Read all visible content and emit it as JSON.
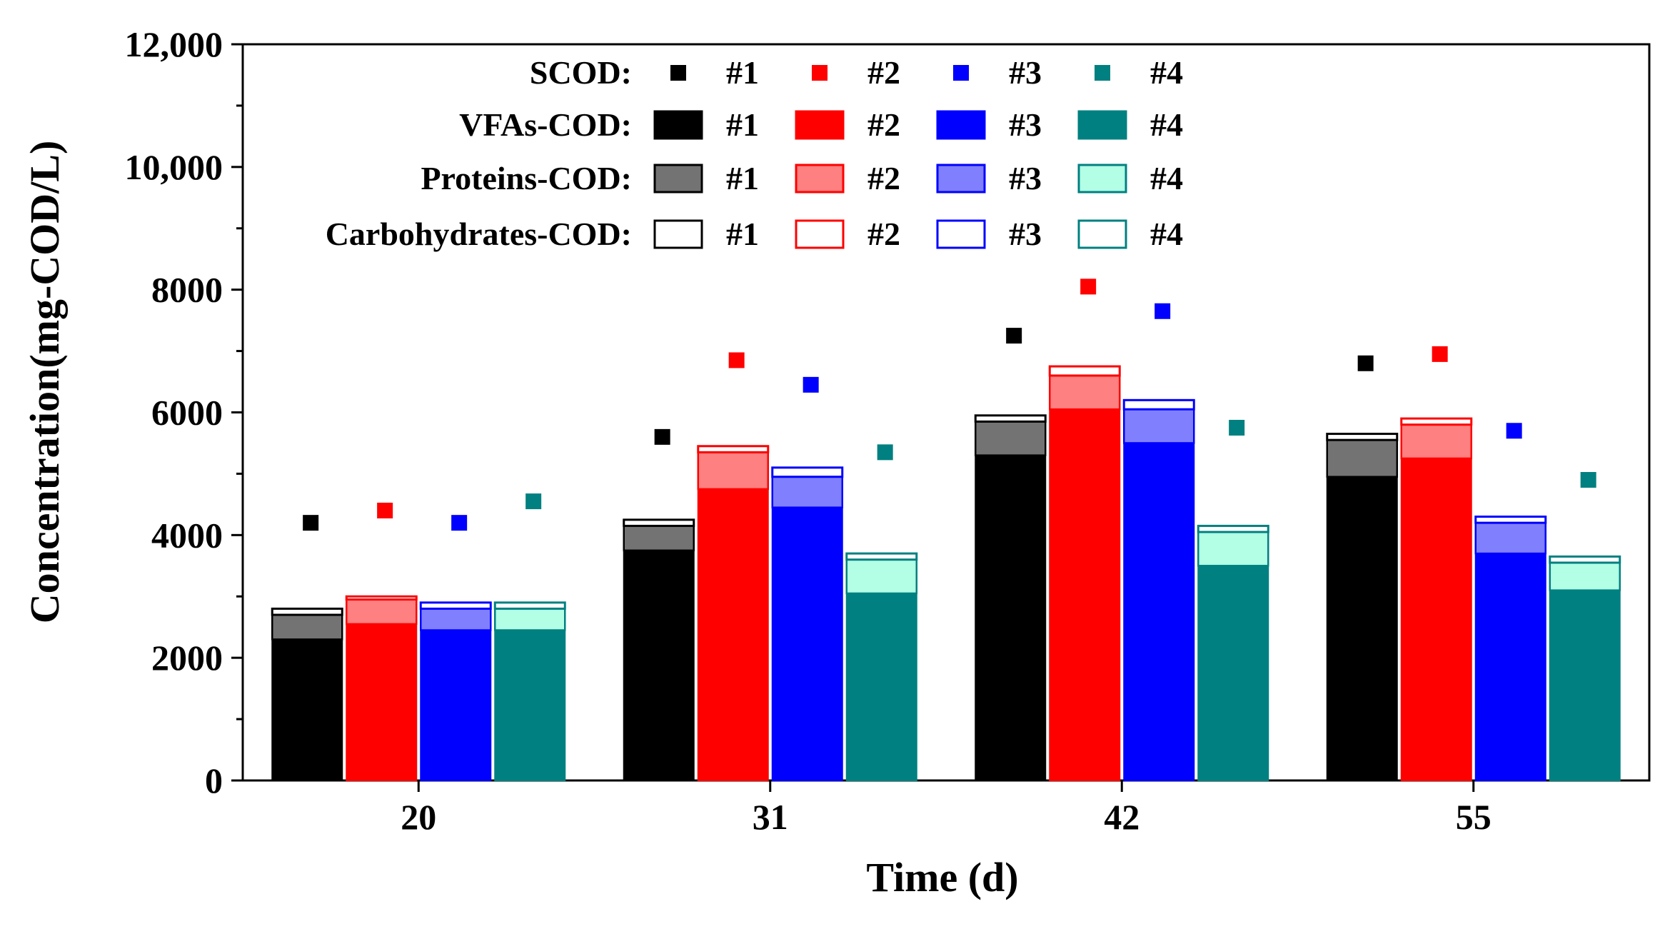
{
  "chart_data": {
    "type": "bar",
    "subtype": "stacked-grouped-bar-with-scatter",
    "title": "",
    "xlabel": "Time (d)",
    "ylabel": "Concentration(mg-COD/L)",
    "ylim": [
      0,
      12000
    ],
    "yticks": [
      0,
      2000,
      4000,
      6000,
      8000,
      10000,
      12000
    ],
    "ytick_labels": [
      "0",
      "2000",
      "4000",
      "6000",
      "8000",
      "10,000",
      "12,000"
    ],
    "categories": [
      "20",
      "31",
      "42",
      "55"
    ],
    "groups": [
      "#1",
      "#2",
      "#3",
      "#4"
    ],
    "legend": {
      "placement": "top-center",
      "rows": [
        {
          "label": "SCOD:",
          "kind": "marker",
          "entries": [
            "#1",
            "#2",
            "#3",
            "#4"
          ]
        },
        {
          "label": "VFAs-COD:",
          "kind": "solid",
          "entries": [
            "#1",
            "#2",
            "#3",
            "#4"
          ]
        },
        {
          "label": "Proteins-COD:",
          "kind": "light",
          "entries": [
            "#1",
            "#2",
            "#3",
            "#4"
          ]
        },
        {
          "label": "Carbohydrates-COD:",
          "kind": "outline",
          "entries": [
            "#1",
            "#2",
            "#3",
            "#4"
          ]
        }
      ]
    },
    "colors": {
      "#1": {
        "solid": "#000000",
        "light": "#737373",
        "outline": "#000000"
      },
      "#2": {
        "solid": "#ff0000",
        "light": "#ff8080",
        "outline": "#ff0000"
      },
      "#3": {
        "solid": "#0000ff",
        "light": "#8080ff",
        "outline": "#0000ff"
      },
      "#4": {
        "solid": "#008080",
        "light": "#b3ffe6",
        "outline": "#008080"
      }
    },
    "series": [
      {
        "name": "VFAs-COD",
        "values": {
          "#1": [
            2300,
            3750,
            5300,
            4950
          ],
          "#2": [
            2550,
            4750,
            6050,
            5250
          ],
          "#3": [
            2450,
            4450,
            5500,
            3700
          ],
          "#4": [
            2450,
            3050,
            3500,
            3100
          ]
        }
      },
      {
        "name": "Proteins-COD",
        "values": {
          "#1": [
            400,
            400,
            550,
            600
          ],
          "#2": [
            400,
            600,
            550,
            550
          ],
          "#3": [
            350,
            500,
            550,
            500
          ],
          "#4": [
            350,
            550,
            550,
            450
          ]
        }
      },
      {
        "name": "Carbohydrates-COD",
        "values": {
          "#1": [
            100,
            100,
            100,
            100
          ],
          "#2": [
            50,
            100,
            150,
            100
          ],
          "#3": [
            100,
            150,
            150,
            100
          ],
          "#4": [
            100,
            100,
            100,
            100
          ]
        }
      },
      {
        "name": "SCOD",
        "values": {
          "#1": [
            4200,
            5600,
            7250,
            6800
          ],
          "#2": [
            4400,
            6850,
            8050,
            6950
          ],
          "#3": [
            4200,
            6450,
            7650,
            5700
          ],
          "#4": [
            4550,
            5350,
            5750,
            4900
          ]
        }
      }
    ]
  }
}
